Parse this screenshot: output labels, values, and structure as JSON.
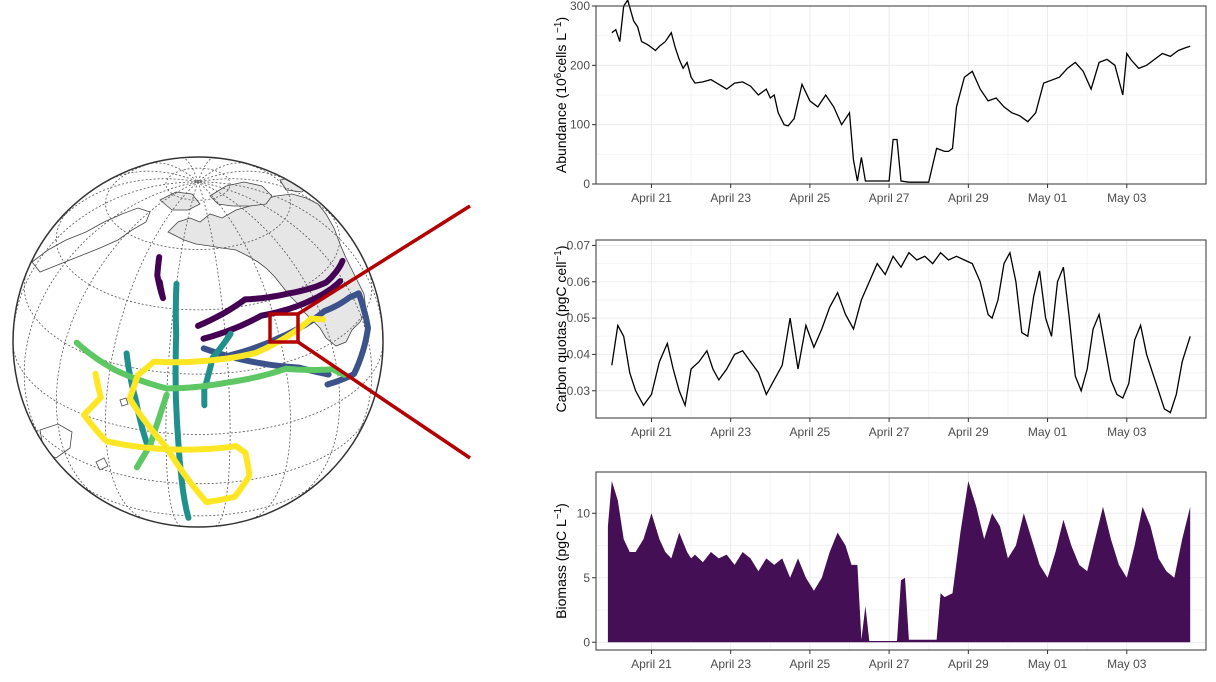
{
  "colors": {
    "zoom_box": "#b30000",
    "land": "#e6e6e6",
    "land_outline": "#444444",
    "graticule": "#555555",
    "globe_outline": "#333333",
    "track_palette": [
      "#440154",
      "#3b528b",
      "#21908d",
      "#5dc863",
      "#fde725"
    ],
    "line_series": "#000000",
    "area_fill": "#440f55",
    "panel_border": "#333333",
    "grid_major": "#ebebeb",
    "grid_minor": "#f5f5f5"
  },
  "globe": {
    "projection": "orthographic",
    "tracks": [
      {
        "color_index": 0,
        "points": [
          [
            -130,
            35
          ],
          [
            -110,
            42
          ],
          [
            -90,
            40
          ],
          [
            -70,
            37
          ],
          [
            -52,
            37
          ]
        ]
      },
      {
        "color_index": 0,
        "points": [
          [
            -128,
            31
          ],
          [
            -105,
            36
          ],
          [
            -80,
            35
          ],
          [
            -62,
            34
          ]
        ]
      },
      {
        "color_index": 0,
        "points": [
          [
            -152,
            56
          ],
          [
            -150,
            50
          ],
          [
            -145,
            43
          ],
          [
            -148,
            48
          ]
        ]
      },
      {
        "color_index": 1,
        "points": [
          [
            -122,
            25
          ],
          [
            -100,
            28
          ],
          [
            -78,
            30
          ],
          [
            -62,
            28
          ],
          [
            -55,
            26
          ],
          [
            -58,
            15
          ],
          [
            -72,
            6
          ],
          [
            -85,
            8
          ]
        ]
      },
      {
        "color_index": 1,
        "points": [
          [
            -128,
            28
          ],
          [
            -110,
            22
          ],
          [
            -95,
            17
          ],
          [
            -84,
            11
          ]
        ]
      },
      {
        "color_index": 2,
        "points": [
          [
            -140,
            48
          ],
          [
            -138,
            32
          ],
          [
            -137,
            12
          ],
          [
            -136,
            -5
          ],
          [
            -135,
            -25
          ],
          [
            -134,
            -42
          ]
        ]
      },
      {
        "color_index": 2,
        "points": [
          [
            -155,
            24
          ],
          [
            -150,
            10
          ],
          [
            -146,
            -5
          ]
        ]
      },
      {
        "color_index": 2,
        "points": [
          [
            -118,
            32
          ],
          [
            -125,
            25
          ],
          [
            -128,
            15
          ],
          [
            -128,
            10
          ]
        ]
      },
      {
        "color_index": 3,
        "points": [
          [
            -175,
            22
          ],
          [
            -158,
            18
          ],
          [
            -140,
            15
          ],
          [
            -120,
            17
          ],
          [
            -100,
            18
          ],
          [
            -82,
            12
          ],
          [
            -77,
            8
          ]
        ]
      },
      {
        "color_index": 3,
        "points": [
          [
            -140,
            13
          ],
          [
            -145,
            -5
          ],
          [
            -150,
            -15
          ]
        ]
      },
      {
        "color_index": 4,
        "points": [
          [
            -165,
            15
          ],
          [
            -162,
            8
          ],
          [
            -168,
            0
          ],
          [
            -160,
            -7
          ],
          [
            -142,
            -6
          ],
          [
            -118,
            -5
          ],
          [
            -115,
            -8
          ],
          [
            -113,
            -18
          ],
          [
            -117,
            -28
          ],
          [
            -127,
            -30
          ],
          [
            -140,
            -5
          ],
          [
            -152,
            10
          ],
          [
            -150,
            18
          ],
          [
            -145,
            23
          ],
          [
            -130,
            24
          ],
          [
            -110,
            25
          ],
          [
            -95,
            28
          ],
          [
            -85,
            30
          ],
          [
            -80,
            28
          ]
        ]
      }
    ]
  },
  "chart_data": [
    {
      "type": "line",
      "ylabel_main": "Abundance (10",
      "ylabel_sup1": "6",
      "ylabel_mid": "cells L",
      "ylabel_sup2": "−1",
      "ylabel_end": ")",
      "ylim": [
        0,
        300
      ],
      "yticks": [
        0,
        100,
        200,
        300
      ],
      "xlim": [
        19.6,
        35.0
      ],
      "xticks": [
        21,
        23,
        25,
        27,
        29,
        31,
        33
      ],
      "xtick_labels": [
        "April 21",
        "April 23",
        "April 25",
        "April 27",
        "April 29",
        "May 01",
        "May 03"
      ],
      "grid": true,
      "x": [
        20.0,
        20.1,
        20.2,
        20.3,
        20.4,
        20.55,
        20.65,
        20.75,
        20.9,
        21.0,
        21.1,
        21.2,
        21.35,
        21.5,
        21.6,
        21.7,
        21.8,
        21.9,
        22.0,
        22.1,
        22.3,
        22.5,
        22.7,
        22.9,
        23.1,
        23.3,
        23.5,
        23.7,
        23.9,
        24.0,
        24.1,
        24.2,
        24.35,
        24.45,
        24.6,
        24.8,
        25.0,
        25.2,
        25.4,
        25.6,
        25.8,
        26.0,
        26.1,
        26.2,
        26.3,
        26.4,
        26.5,
        26.6,
        26.8,
        27.0,
        27.1,
        27.2,
        27.3,
        27.5,
        27.7,
        27.8,
        28.0,
        28.2,
        28.4,
        28.5,
        28.6,
        28.7,
        28.9,
        29.1,
        29.3,
        29.5,
        29.7,
        29.9,
        30.1,
        30.3,
        30.5,
        30.7,
        30.9,
        31.1,
        31.3,
        31.5,
        31.7,
        31.9,
        32.1,
        32.3,
        32.5,
        32.7,
        32.9,
        33.0,
        33.1,
        33.3,
        33.5,
        33.7,
        33.9,
        34.1,
        34.3,
        34.5,
        34.6
      ],
      "values": [
        255,
        260,
        240,
        300,
        310,
        275,
        265,
        240,
        235,
        230,
        225,
        232,
        240,
        255,
        230,
        210,
        195,
        205,
        180,
        170,
        172,
        176,
        168,
        160,
        170,
        172,
        165,
        150,
        160,
        145,
        150,
        120,
        100,
        98,
        110,
        168,
        140,
        130,
        150,
        130,
        100,
        120,
        40,
        5,
        45,
        5,
        5,
        5,
        5,
        5,
        75,
        75,
        5,
        3,
        3,
        3,
        3,
        60,
        55,
        55,
        60,
        130,
        180,
        190,
        160,
        140,
        145,
        130,
        120,
        115,
        105,
        120,
        170,
        175,
        180,
        195,
        205,
        190,
        160,
        205,
        210,
        200,
        150,
        220,
        210,
        195,
        200,
        210,
        220,
        215,
        225,
        230,
        232
      ]
    },
    {
      "type": "line",
      "ylabel_main": "Carbon quotas (pgC cell",
      "ylabel_sup": "−1",
      "ylabel_end": ")",
      "ylim": [
        0.0225,
        0.0715
      ],
      "yticks": [
        0.03,
        0.04,
        0.05,
        0.06,
        0.07
      ],
      "ytick_labels": [
        "0.03",
        "0.04",
        "0.05",
        "0.06",
        "0.07"
      ],
      "xlim": [
        19.6,
        35.0
      ],
      "xticks": [
        21,
        23,
        25,
        27,
        29,
        31,
        33
      ],
      "xtick_labels": [
        "April 21",
        "April 23",
        "April 25",
        "April 27",
        "April 29",
        "May 01",
        "May 03"
      ],
      "grid": true,
      "x": [
        20.0,
        20.15,
        20.3,
        20.45,
        20.6,
        20.8,
        21.0,
        21.2,
        21.4,
        21.55,
        21.7,
        21.85,
        22.0,
        22.2,
        22.4,
        22.55,
        22.7,
        22.9,
        23.1,
        23.3,
        23.5,
        23.7,
        23.9,
        24.1,
        24.3,
        24.5,
        24.7,
        24.9,
        25.1,
        25.3,
        25.5,
        25.7,
        25.9,
        26.1,
        26.3,
        26.5,
        26.7,
        26.9,
        27.1,
        27.3,
        27.5,
        27.7,
        27.9,
        28.1,
        28.3,
        28.5,
        28.7,
        28.9,
        29.1,
        29.3,
        29.5,
        29.6,
        29.75,
        29.9,
        30.05,
        30.2,
        30.35,
        30.5,
        30.65,
        30.8,
        30.95,
        31.1,
        31.25,
        31.4,
        31.55,
        31.7,
        31.85,
        32.0,
        32.15,
        32.3,
        32.45,
        32.6,
        32.75,
        32.9,
        33.05,
        33.2,
        33.35,
        33.5,
        33.65,
        33.8,
        33.95,
        34.1,
        34.25,
        34.4,
        34.6
      ],
      "values": [
        0.037,
        0.048,
        0.045,
        0.035,
        0.03,
        0.026,
        0.029,
        0.038,
        0.043,
        0.036,
        0.03,
        0.026,
        0.036,
        0.038,
        0.041,
        0.036,
        0.033,
        0.036,
        0.04,
        0.041,
        0.038,
        0.035,
        0.029,
        0.033,
        0.037,
        0.05,
        0.036,
        0.048,
        0.042,
        0.047,
        0.053,
        0.057,
        0.051,
        0.047,
        0.055,
        0.06,
        0.065,
        0.062,
        0.067,
        0.064,
        0.068,
        0.066,
        0.067,
        0.065,
        0.068,
        0.066,
        0.067,
        0.066,
        0.065,
        0.06,
        0.051,
        0.05,
        0.055,
        0.065,
        0.068,
        0.06,
        0.046,
        0.045,
        0.056,
        0.063,
        0.05,
        0.045,
        0.06,
        0.064,
        0.05,
        0.034,
        0.03,
        0.036,
        0.047,
        0.051,
        0.042,
        0.033,
        0.029,
        0.028,
        0.032,
        0.044,
        0.048,
        0.04,
        0.035,
        0.03,
        0.025,
        0.024,
        0.029,
        0.038,
        0.045
      ]
    },
    {
      "type": "area",
      "ylabel_main": "Biomass (pgC L",
      "ylabel_sup": "−1",
      "ylabel_end": ")",
      "ylim": [
        -0.6,
        13.2
      ],
      "yticks": [
        0,
        5,
        10
      ],
      "xlim": [
        19.6,
        35.0
      ],
      "xticks": [
        21,
        23,
        25,
        27,
        29,
        31,
        33
      ],
      "xtick_labels": [
        "April 21",
        "April 23",
        "April 25",
        "April 27",
        "April 29",
        "May 01",
        "May 03"
      ],
      "grid": true,
      "x": [
        19.9,
        20.0,
        20.15,
        20.3,
        20.45,
        20.6,
        20.8,
        21.0,
        21.2,
        21.35,
        21.5,
        21.7,
        21.9,
        22.0,
        22.1,
        22.3,
        22.5,
        22.7,
        22.9,
        23.1,
        23.3,
        23.5,
        23.7,
        23.9,
        24.1,
        24.3,
        24.5,
        24.7,
        24.9,
        25.1,
        25.3,
        25.5,
        25.7,
        25.9,
        26.05,
        26.2,
        26.3,
        26.4,
        26.5,
        26.7,
        26.9,
        27.2,
        27.3,
        27.4,
        27.5,
        27.6,
        28.0,
        28.2,
        28.3,
        28.4,
        28.6,
        28.8,
        29.0,
        29.2,
        29.4,
        29.6,
        29.8,
        30.0,
        30.2,
        30.4,
        30.6,
        30.8,
        31.0,
        31.2,
        31.4,
        31.6,
        31.8,
        32.0,
        32.2,
        32.4,
        32.6,
        32.8,
        33.0,
        33.2,
        33.4,
        33.6,
        33.8,
        34.0,
        34.2,
        34.4,
        34.6,
        34.6,
        19.9
      ],
      "values": [
        9.0,
        12.5,
        11.0,
        8.0,
        7.0,
        7.0,
        8.0,
        10.0,
        8.0,
        7.0,
        6.5,
        8.5,
        7.0,
        6.5,
        6.8,
        6.2,
        7.0,
        6.5,
        6.8,
        6.0,
        7.0,
        6.5,
        5.5,
        6.5,
        6.0,
        6.5,
        5.0,
        6.5,
        5.0,
        4.0,
        5.0,
        7.0,
        8.5,
        7.5,
        6.0,
        6.0,
        0.2,
        2.8,
        0.1,
        0.1,
        0.1,
        0.1,
        4.8,
        5.0,
        0.2,
        0.2,
        0.2,
        0.2,
        3.8,
        3.5,
        3.8,
        8.5,
        12.5,
        10.5,
        8.0,
        10.0,
        9.0,
        6.5,
        7.5,
        10.0,
        8.0,
        6.0,
        5.0,
        7.0,
        9.5,
        7.5,
        6.0,
        5.5,
        8.0,
        10.5,
        8.0,
        6.0,
        5.0,
        7.5,
        10.5,
        9.0,
        6.5,
        5.5,
        5.0,
        8.0,
        10.5,
        0.0,
        0.0
      ]
    }
  ]
}
